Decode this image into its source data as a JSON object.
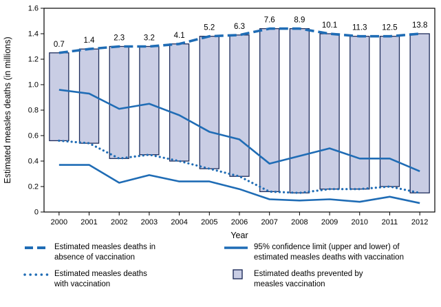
{
  "chart_data": {
    "type": "bar",
    "title": "",
    "xlabel": "Year",
    "ylabel": "Estimated measles deaths (in millions)",
    "ylim": [
      0,
      1.6
    ],
    "ytick_labels": [
      "0",
      "0.2",
      "0.4",
      "0.6",
      "0.8",
      "1.0",
      "1.2",
      "1.4",
      "1.6"
    ],
    "categories": [
      "2000",
      "2001",
      "2002",
      "2003",
      "2004",
      "2005",
      "2006",
      "2007",
      "2008",
      "2009",
      "2010",
      "2011",
      "2012"
    ],
    "grid": false,
    "legend_position": "bottom",
    "bar_series": {
      "name": "Estimated deaths prevented by measles vaccination",
      "labels": [
        "0.7",
        "1.4",
        "2.3",
        "3.2",
        "4.1",
        "5.2",
        "6.3",
        "7.6",
        "8.9",
        "10.1",
        "11.3",
        "12.5",
        "13.8"
      ],
      "from_values": [
        0.56,
        0.54,
        0.42,
        0.45,
        0.4,
        0.34,
        0.28,
        0.16,
        0.15,
        0.18,
        0.18,
        0.2,
        0.15
      ],
      "to_values": [
        1.25,
        1.28,
        1.3,
        1.3,
        1.32,
        1.38,
        1.39,
        1.44,
        1.44,
        1.4,
        1.38,
        1.38,
        1.4
      ]
    },
    "series": [
      {
        "name": "Estimated measles deaths in absence of vaccination",
        "line_style": "dashed",
        "values": [
          1.25,
          1.28,
          1.3,
          1.3,
          1.32,
          1.38,
          1.39,
          1.44,
          1.44,
          1.4,
          1.38,
          1.38,
          1.4
        ]
      },
      {
        "name": "Estimated measles deaths with vaccination",
        "line_style": "dotted",
        "values": [
          0.56,
          0.54,
          0.42,
          0.45,
          0.4,
          0.34,
          0.28,
          0.16,
          0.15,
          0.18,
          0.18,
          0.2,
          0.15
        ]
      },
      {
        "name": "95% confidence limit (upper) of estimated measles deaths with vaccination",
        "line_style": "solid",
        "values": [
          0.96,
          0.93,
          0.81,
          0.85,
          0.76,
          0.63,
          0.57,
          0.38,
          0.44,
          0.5,
          0.42,
          0.42,
          0.32
        ]
      },
      {
        "name": "95% confidence limit (lower) of estimated measles deaths with vaccination",
        "line_style": "solid",
        "values": [
          0.37,
          0.37,
          0.23,
          0.29,
          0.24,
          0.24,
          0.18,
          0.1,
          0.09,
          0.1,
          0.08,
          0.12,
          0.07
        ]
      }
    ],
    "colors": {
      "line_blue": "#1f6cb5",
      "bar_fill": "#c9cde4",
      "bar_border": "#1e2c5a",
      "axis": "#000000"
    }
  },
  "legend": {
    "items": [
      {
        "icon": "dashed-line-icon",
        "label": "Estimated measles deaths in absence of vaccination"
      },
      {
        "icon": "solid-line-icon",
        "label": "95% confidence limit (upper and lower) of estimated measles deaths with vaccination"
      },
      {
        "icon": "dotted-line-icon",
        "label": "Estimated measles deaths with vaccination"
      },
      {
        "icon": "bar-swatch-icon",
        "label": "Estimated deaths prevented by measles vaccination"
      }
    ]
  }
}
